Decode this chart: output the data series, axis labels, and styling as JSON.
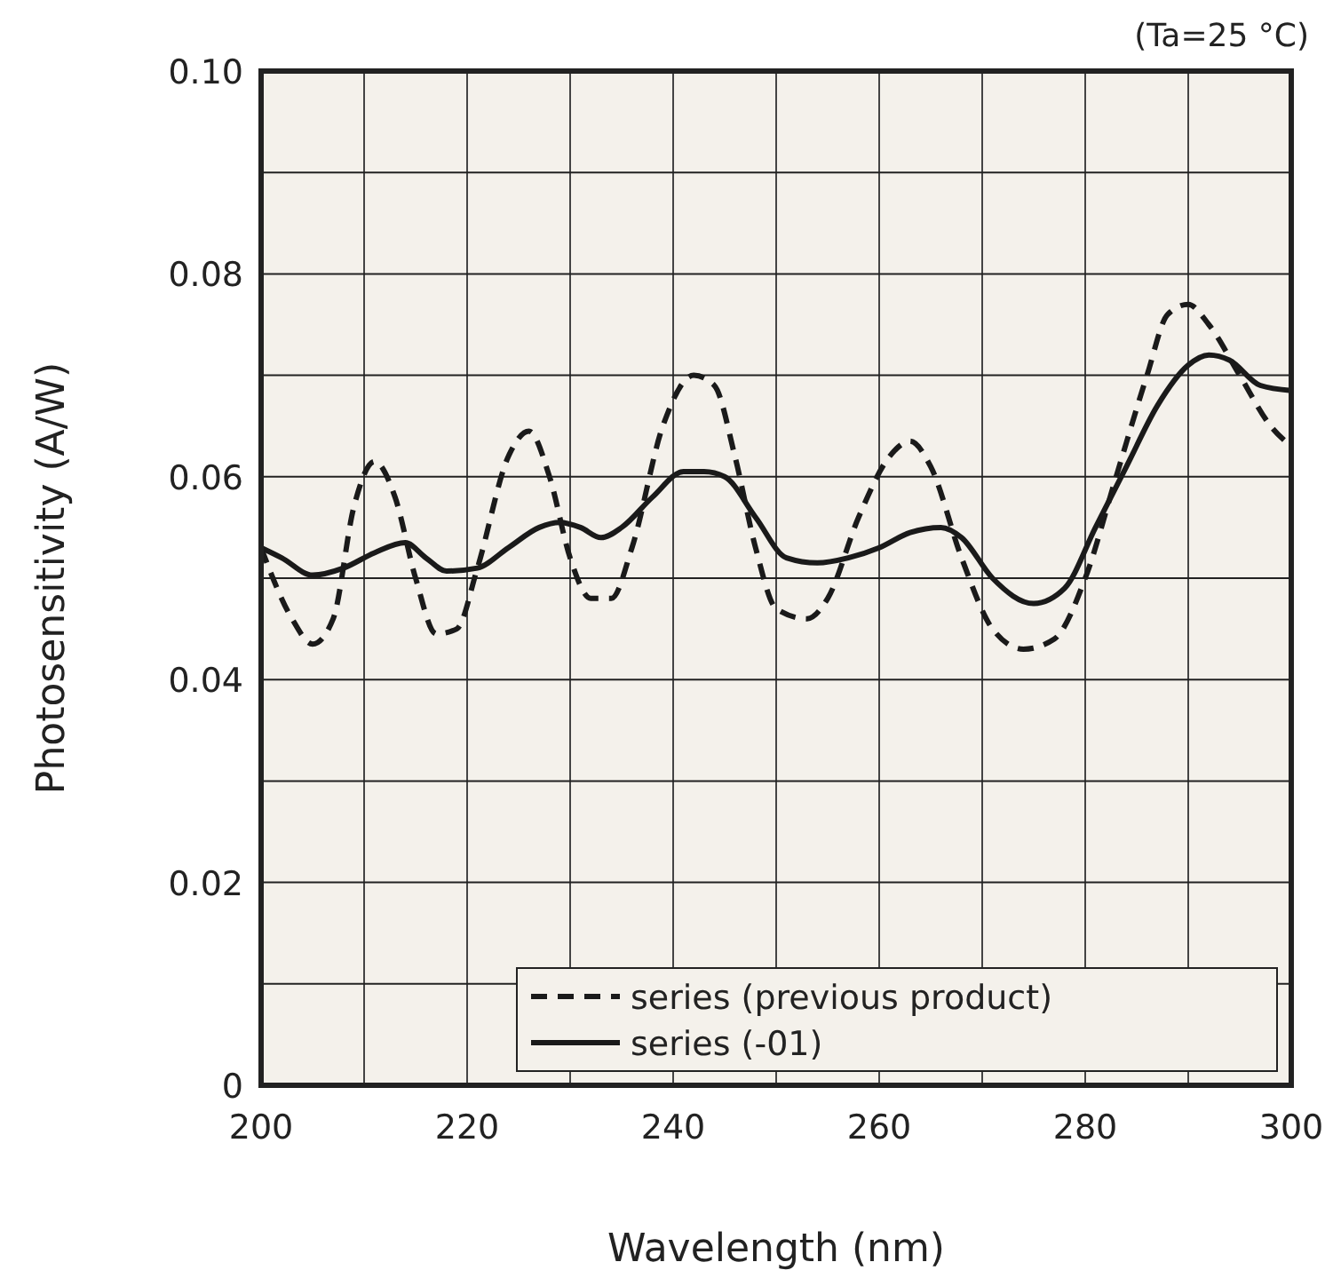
{
  "chart_data": {
    "type": "line",
    "xlabel": "Wavelength (nm)",
    "ylabel": "Photosensitivity (A/W)",
    "annotations": [
      "(Ta=25 °C)"
    ],
    "xlim": [
      200,
      300
    ],
    "ylim": [
      0,
      0.1
    ],
    "xticks": [
      200,
      {
        "value": 210,
        "label": null
      },
      220,
      {
        "value": 230,
        "label": null
      },
      240,
      {
        "value": 250,
        "label": null
      },
      260,
      {
        "value": 270,
        "label": null
      },
      280,
      {
        "value": 290,
        "label": null
      },
      300
    ],
    "yticks": [
      0,
      {
        "value": 0.01,
        "label": null
      },
      0.02,
      {
        "value": 0.03,
        "label": null
      },
      0.04,
      {
        "value": 0.05,
        "label": null
      },
      0.06,
      {
        "value": 0.07,
        "label": null
      },
      0.08,
      {
        "value": 0.09,
        "label": null
      },
      {
        "value": 0.1,
        "label": "0.10"
      }
    ],
    "grid": true,
    "legend": "bottom right",
    "marker": "none",
    "series": [
      {
        "name": "series (previous product)",
        "color": "#1a1a1a",
        "line_style": "dashed",
        "x": [
          200,
          203,
          205,
          207,
          209,
          211,
          213,
          215,
          217,
          219,
          221,
          224,
          226,
          228,
          230,
          232,
          234,
          236,
          239,
          242,
          244,
          246,
          248,
          250,
          253,
          255,
          258,
          261,
          263,
          265,
          268,
          271,
          274,
          277,
          280,
          283,
          286,
          288,
          290,
          292,
          295,
          298,
          300
        ],
        "values": [
          0.053,
          0.046,
          0.0435,
          0.046,
          0.057,
          0.0615,
          0.058,
          0.05,
          0.0445,
          0.045,
          0.051,
          0.062,
          0.0645,
          0.06,
          0.052,
          0.048,
          0.048,
          0.053,
          0.065,
          0.07,
          0.069,
          0.062,
          0.053,
          0.047,
          0.046,
          0.048,
          0.056,
          0.062,
          0.0635,
          0.061,
          0.052,
          0.045,
          0.043,
          0.044,
          0.05,
          0.06,
          0.07,
          0.076,
          0.077,
          0.075,
          0.07,
          0.065,
          0.063
        ]
      },
      {
        "name": "series (-01)",
        "color": "#1a1a1a",
        "line_style": "solid",
        "x": [
          200,
          202,
          205,
          208,
          211,
          214,
          216,
          218,
          221,
          224,
          227,
          229,
          231,
          233,
          235,
          238,
          241,
          243,
          245,
          248,
          251,
          254,
          257,
          260,
          263,
          266,
          268,
          271,
          275,
          278,
          281,
          284,
          287,
          290,
          292,
          294,
          297,
          300
        ],
        "values": [
          0.053,
          0.052,
          0.0503,
          0.051,
          0.0525,
          0.0535,
          0.052,
          0.0507,
          0.051,
          0.053,
          0.055,
          0.0555,
          0.055,
          0.054,
          0.055,
          0.058,
          0.0605,
          0.0605,
          0.06,
          0.056,
          0.052,
          0.0515,
          0.052,
          0.053,
          0.0545,
          0.055,
          0.054,
          0.05,
          0.0475,
          0.049,
          0.055,
          0.061,
          0.067,
          0.071,
          0.072,
          0.0715,
          0.069,
          0.0685
        ]
      }
    ]
  }
}
